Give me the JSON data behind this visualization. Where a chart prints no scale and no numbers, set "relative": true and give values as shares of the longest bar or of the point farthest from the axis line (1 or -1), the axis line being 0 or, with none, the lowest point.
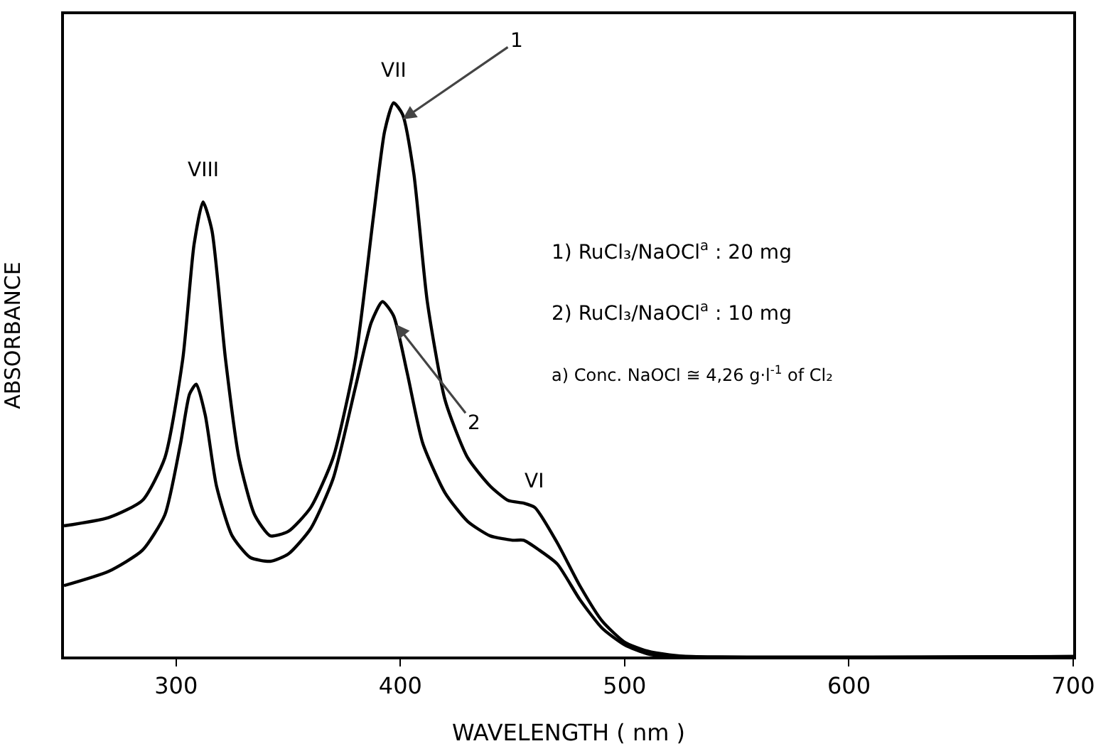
{
  "chart_data": {
    "type": "line",
    "relative": true,
    "xlabel": "WAVELENGTH ( nm )",
    "ylabel": "ABSORBANCE",
    "xlim": [
      250,
      700
    ],
    "xticks": [
      300,
      400,
      500,
      600,
      700
    ],
    "grid": false,
    "marker": "none",
    "line_style": "solid",
    "series": [
      {
        "color": "#000000",
        "x": [
          250,
          270,
          285,
          295,
          303,
          308,
          312,
          316,
          322,
          328,
          335,
          342,
          350,
          360,
          370,
          380,
          388,
          393,
          397,
          401,
          406,
          412,
          420,
          430,
          440,
          448,
          455,
          460,
          470,
          480,
          490,
          500,
          510,
          520,
          530,
          700
        ],
        "values": [
          0.236,
          0.251,
          0.282,
          0.359,
          0.538,
          0.744,
          0.821,
          0.769,
          0.538,
          0.359,
          0.256,
          0.218,
          0.226,
          0.269,
          0.359,
          0.538,
          0.795,
          0.949,
          1,
          0.979,
          0.872,
          0.641,
          0.462,
          0.359,
          0.308,
          0.282,
          0.277,
          0.269,
          0.205,
          0.128,
          0.064,
          0.026,
          0.01,
          0.003,
          0,
          0
        ]
      },
      {
        "color": "#000000",
        "x": [
          250,
          270,
          285,
          295,
          302,
          306,
          309,
          313,
          318,
          325,
          333,
          342,
          350,
          360,
          370,
          380,
          387,
          392,
          397,
          403,
          410,
          420,
          430,
          440,
          450,
          455,
          462,
          470,
          480,
          490,
          500,
          510,
          520,
          700
        ],
        "values": [
          0.128,
          0.154,
          0.192,
          0.256,
          0.385,
          0.474,
          0.492,
          0.436,
          0.308,
          0.218,
          0.179,
          0.172,
          0.185,
          0.231,
          0.321,
          0.487,
          0.603,
          0.641,
          0.615,
          0.513,
          0.385,
          0.295,
          0.244,
          0.218,
          0.21,
          0.21,
          0.192,
          0.167,
          0.103,
          0.051,
          0.021,
          0.005,
          0,
          0
        ]
      }
    ],
    "annotations": [
      {
        "text": "VIII",
        "x": 312,
        "y": 0.821
      },
      {
        "text": "VII",
        "x": 397,
        "y": 1
      },
      {
        "text": "VI",
        "x": 460,
        "y": 0.269
      },
      {
        "text": "1",
        "x": 401,
        "y": 0.97
      },
      {
        "text": "2",
        "x": 398,
        "y": 0.6
      },
      "1) RuCl₃/NaOCl$^{a}$ : 20 mg",
      "2) RuCl₃/NaOCl$^{a}$ : 10 mg",
      "a) Conc. NaOCl ≅ 4,26 g·l$^{-1}$ of Cl₂"
    ]
  }
}
